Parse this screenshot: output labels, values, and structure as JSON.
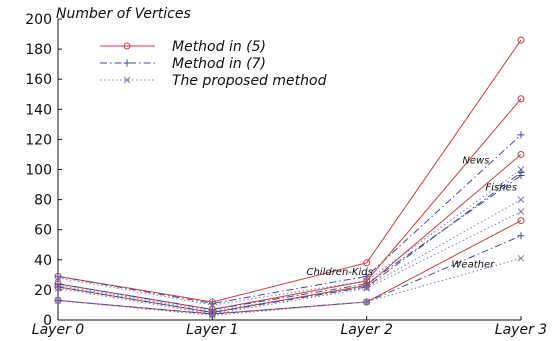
{
  "chart_data": {
    "type": "line",
    "ylabel": "Number of Vertices",
    "xlabel": "",
    "categories": [
      "Layer 0",
      "Layer 1",
      "Layer 2",
      "Layer 3"
    ],
    "ylim": [
      0,
      200
    ],
    "yticks": [
      0,
      20,
      40,
      60,
      80,
      100,
      120,
      140,
      160,
      180,
      200
    ],
    "grid": false,
    "legend_position": "top-left",
    "legend": [
      {
        "label": "Method in (5)",
        "marker": "circle",
        "color": "#d03c3c",
        "dash": "solid"
      },
      {
        "label": "Method in (7)",
        "marker": "plus",
        "color": "#3c4aa0",
        "dash": "dashdot"
      },
      {
        "label": "The proposed method",
        "marker": "cross",
        "color": "#7a7ab0",
        "dash": "dotted"
      }
    ],
    "annotations": [
      {
        "text": "News",
        "x": 2.62,
        "y": 104
      },
      {
        "text": "Fishes",
        "x": 2.77,
        "y": 86
      },
      {
        "text": "Children-Kids",
        "x": 1.61,
        "y": 30
      },
      {
        "text": "Weather",
        "x": 2.55,
        "y": 35
      }
    ],
    "series": [
      {
        "group": "News",
        "method": "Method in (5)",
        "values": [
          29,
          12,
          38,
          186
        ]
      },
      {
        "group": "News",
        "method": "Method in (7)",
        "values": [
          29,
          11,
          29,
          123
        ]
      },
      {
        "group": "News",
        "method": "The proposed method",
        "values": [
          28,
          10,
          26,
          100
        ]
      },
      {
        "group": "Fishes",
        "method": "Method in (5)",
        "values": [
          24,
          7,
          26,
          147
        ]
      },
      {
        "group": "Fishes",
        "method": "Method in (7)",
        "values": [
          24,
          7,
          24,
          96
        ]
      },
      {
        "group": "Fishes",
        "method": "The proposed method",
        "values": [
          23,
          6,
          22,
          80
        ]
      },
      {
        "group": "Children-Kids",
        "method": "Method in (5)",
        "values": [
          22,
          5,
          23,
          110
        ]
      },
      {
        "group": "Children-Kids",
        "method": "Method in (7)",
        "values": [
          22,
          5,
          22,
          98
        ]
      },
      {
        "group": "Children-Kids",
        "method": "The proposed method",
        "values": [
          21,
          4,
          21,
          72
        ]
      },
      {
        "group": "Weather",
        "method": "Method in (5)",
        "values": [
          13,
          4,
          12,
          66
        ]
      },
      {
        "group": "Weather",
        "method": "Method in (7)",
        "values": [
          13,
          4,
          12,
          56
        ]
      },
      {
        "group": "Weather",
        "method": "The proposed method",
        "values": [
          13,
          3,
          12,
          41
        ]
      }
    ]
  }
}
